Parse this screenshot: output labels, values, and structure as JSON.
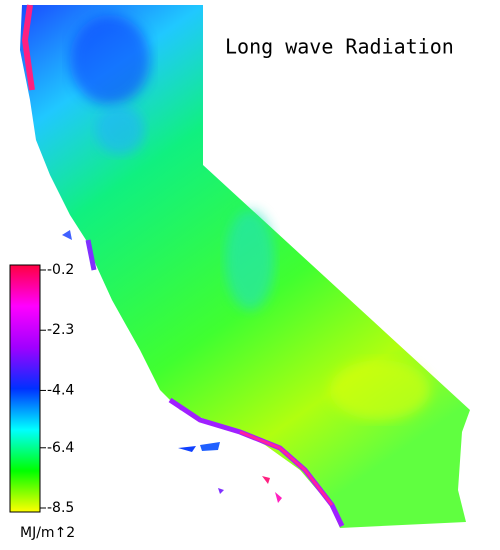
{
  "title": "Long wave Radiation",
  "legend": {
    "range": [
      -8.5,
      -0.2
    ],
    "ticks": [
      -0.2,
      -2.3,
      -4.4,
      -6.4,
      -8.5
    ],
    "unit": "MJ/m↑2",
    "colors": [
      "#ffff00",
      "#00ff00",
      "#00ffff",
      "#0030ff",
      "#a000ff",
      "#ff00ff",
      "#ff0040"
    ]
  }
}
